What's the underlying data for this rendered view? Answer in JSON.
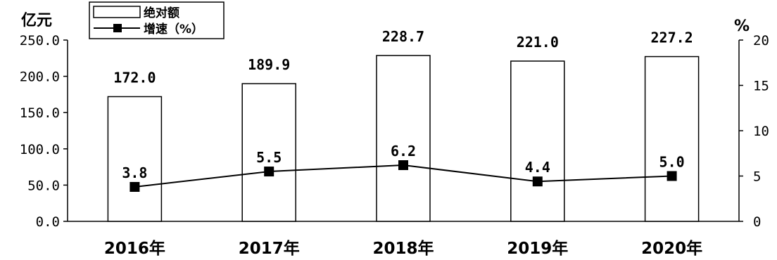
{
  "chart_data": {
    "type": "bar",
    "categories": [
      "2016年",
      "2017年",
      "2018年",
      "2019年",
      "2020年"
    ],
    "series": [
      {
        "name": "绝对额",
        "type": "bar",
        "axis": "left",
        "values": [
          172.0,
          189.9,
          228.7,
          221.0,
          227.2
        ],
        "labels": [
          "172.0",
          "189.9",
          "228.7",
          "221.0",
          "227.2"
        ]
      },
      {
        "name": "增速（%）",
        "type": "line",
        "axis": "right",
        "marker": "square",
        "values": [
          3.8,
          5.5,
          6.2,
          4.4,
          5.0
        ],
        "labels": [
          "3.8",
          "5.5",
          "6.2",
          "4.4",
          "5.0"
        ]
      }
    ],
    "ylabel": "亿元",
    "ylim": [
      0,
      250
    ],
    "yticks": [
      "0.0",
      "50.0",
      "100.0",
      "150.0",
      "200.0",
      "250.0"
    ],
    "y2label": "%",
    "y2lim": [
      0,
      20
    ],
    "y2ticks": [
      "0",
      "5",
      "10",
      "15",
      "20"
    ],
    "grid": false,
    "legend": "top-left",
    "colors": {
      "bar_fill": "#ffffff",
      "bar_stroke": "#000000",
      "line": "#000000",
      "marker": "#000000"
    }
  }
}
